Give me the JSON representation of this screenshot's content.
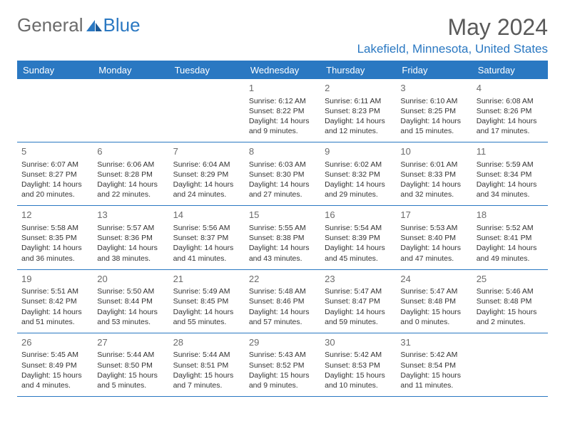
{
  "brand": {
    "part1": "General",
    "part2": "Blue"
  },
  "title": "May 2024",
  "location": "Lakefield, Minnesota, United States",
  "colors": {
    "accent": "#2a78c2",
    "text": "#333333",
    "muted": "#6b6b6b",
    "bg": "#ffffff"
  },
  "typography": {
    "title_fontsize": 32,
    "location_fontsize": 17,
    "header_fontsize": 13,
    "cell_fontsize": 10.5
  },
  "calendar": {
    "type": "table",
    "columns": [
      "Sunday",
      "Monday",
      "Tuesday",
      "Wednesday",
      "Thursday",
      "Friday",
      "Saturday"
    ],
    "weeks": [
      [
        null,
        null,
        null,
        {
          "n": "1",
          "sr": "6:12 AM",
          "ss": "8:22 PM",
          "dl": "14 hours and 9 minutes."
        },
        {
          "n": "2",
          "sr": "6:11 AM",
          "ss": "8:23 PM",
          "dl": "14 hours and 12 minutes."
        },
        {
          "n": "3",
          "sr": "6:10 AM",
          "ss": "8:25 PM",
          "dl": "14 hours and 15 minutes."
        },
        {
          "n": "4",
          "sr": "6:08 AM",
          "ss": "8:26 PM",
          "dl": "14 hours and 17 minutes."
        }
      ],
      [
        {
          "n": "5",
          "sr": "6:07 AM",
          "ss": "8:27 PM",
          "dl": "14 hours and 20 minutes."
        },
        {
          "n": "6",
          "sr": "6:06 AM",
          "ss": "8:28 PM",
          "dl": "14 hours and 22 minutes."
        },
        {
          "n": "7",
          "sr": "6:04 AM",
          "ss": "8:29 PM",
          "dl": "14 hours and 24 minutes."
        },
        {
          "n": "8",
          "sr": "6:03 AM",
          "ss": "8:30 PM",
          "dl": "14 hours and 27 minutes."
        },
        {
          "n": "9",
          "sr": "6:02 AM",
          "ss": "8:32 PM",
          "dl": "14 hours and 29 minutes."
        },
        {
          "n": "10",
          "sr": "6:01 AM",
          "ss": "8:33 PM",
          "dl": "14 hours and 32 minutes."
        },
        {
          "n": "11",
          "sr": "5:59 AM",
          "ss": "8:34 PM",
          "dl": "14 hours and 34 minutes."
        }
      ],
      [
        {
          "n": "12",
          "sr": "5:58 AM",
          "ss": "8:35 PM",
          "dl": "14 hours and 36 minutes."
        },
        {
          "n": "13",
          "sr": "5:57 AM",
          "ss": "8:36 PM",
          "dl": "14 hours and 38 minutes."
        },
        {
          "n": "14",
          "sr": "5:56 AM",
          "ss": "8:37 PM",
          "dl": "14 hours and 41 minutes."
        },
        {
          "n": "15",
          "sr": "5:55 AM",
          "ss": "8:38 PM",
          "dl": "14 hours and 43 minutes."
        },
        {
          "n": "16",
          "sr": "5:54 AM",
          "ss": "8:39 PM",
          "dl": "14 hours and 45 minutes."
        },
        {
          "n": "17",
          "sr": "5:53 AM",
          "ss": "8:40 PM",
          "dl": "14 hours and 47 minutes."
        },
        {
          "n": "18",
          "sr": "5:52 AM",
          "ss": "8:41 PM",
          "dl": "14 hours and 49 minutes."
        }
      ],
      [
        {
          "n": "19",
          "sr": "5:51 AM",
          "ss": "8:42 PM",
          "dl": "14 hours and 51 minutes."
        },
        {
          "n": "20",
          "sr": "5:50 AM",
          "ss": "8:44 PM",
          "dl": "14 hours and 53 minutes."
        },
        {
          "n": "21",
          "sr": "5:49 AM",
          "ss": "8:45 PM",
          "dl": "14 hours and 55 minutes."
        },
        {
          "n": "22",
          "sr": "5:48 AM",
          "ss": "8:46 PM",
          "dl": "14 hours and 57 minutes."
        },
        {
          "n": "23",
          "sr": "5:47 AM",
          "ss": "8:47 PM",
          "dl": "14 hours and 59 minutes."
        },
        {
          "n": "24",
          "sr": "5:47 AM",
          "ss": "8:48 PM",
          "dl": "15 hours and 0 minutes."
        },
        {
          "n": "25",
          "sr": "5:46 AM",
          "ss": "8:48 PM",
          "dl": "15 hours and 2 minutes."
        }
      ],
      [
        {
          "n": "26",
          "sr": "5:45 AM",
          "ss": "8:49 PM",
          "dl": "15 hours and 4 minutes."
        },
        {
          "n": "27",
          "sr": "5:44 AM",
          "ss": "8:50 PM",
          "dl": "15 hours and 5 minutes."
        },
        {
          "n": "28",
          "sr": "5:44 AM",
          "ss": "8:51 PM",
          "dl": "15 hours and 7 minutes."
        },
        {
          "n": "29",
          "sr": "5:43 AM",
          "ss": "8:52 PM",
          "dl": "15 hours and 9 minutes."
        },
        {
          "n": "30",
          "sr": "5:42 AM",
          "ss": "8:53 PM",
          "dl": "15 hours and 10 minutes."
        },
        {
          "n": "31",
          "sr": "5:42 AM",
          "ss": "8:54 PM",
          "dl": "15 hours and 11 minutes."
        },
        null
      ]
    ],
    "labels": {
      "sunrise": "Sunrise:",
      "sunset": "Sunset:",
      "daylight": "Daylight:"
    }
  }
}
